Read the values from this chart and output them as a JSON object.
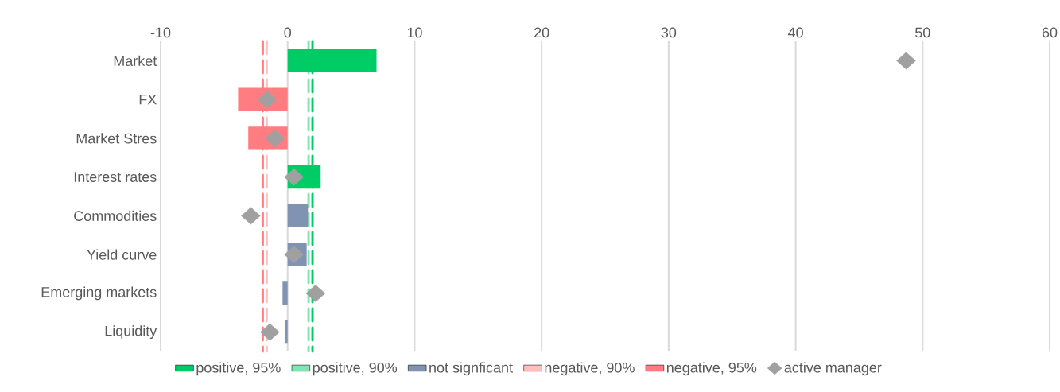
{
  "chart_data": {
    "type": "bar",
    "orientation": "horizontal",
    "stacked": true,
    "categories": [
      "Market",
      "FX",
      "Market Stres",
      "Interest rates",
      "Commodities",
      "Yield curve",
      "Emerging markets",
      "Liquidity"
    ],
    "series": [
      {
        "name": "positive, 95%",
        "color": "#00cc66",
        "values": [
          7.0,
          null,
          null,
          2.6,
          null,
          null,
          null,
          null
        ]
      },
      {
        "name": "positive, 90%",
        "color": "#84e3b3",
        "values": [
          null,
          null,
          null,
          null,
          null,
          null,
          null,
          null
        ]
      },
      {
        "name": "not signficant",
        "color": "#8093b3",
        "values": [
          null,
          null,
          null,
          null,
          1.6,
          1.5,
          -0.4,
          -0.2
        ]
      },
      {
        "name": "negative, 90%",
        "color": "#ffbfbf",
        "values": [
          null,
          null,
          null,
          null,
          null,
          null,
          null,
          null
        ]
      },
      {
        "name": "negative, 95%",
        "color": "#ff7c80",
        "values": [
          null,
          -3.9,
          -3.1,
          null,
          null,
          null,
          null,
          null
        ]
      },
      {
        "name": "active manager",
        "type": "scatter",
        "marker": "diamond",
        "color": "#a0a0a0",
        "x": [
          "Market",
          "FX",
          "Market Stres",
          "Interest rates",
          "Commodities",
          "Yield curve",
          "Emerging markets",
          "Liquidity"
        ],
        "values": [
          48.7,
          -1.6,
          -1.0,
          0.5,
          -2.9,
          0.5,
          2.2,
          -1.4
        ]
      }
    ],
    "xlim": [
      -10,
      60
    ],
    "xticks": [
      -10,
      0,
      10,
      20,
      30,
      40,
      50,
      60
    ],
    "grid": "x",
    "legend": "bottom",
    "ref_lines": [
      {
        "axis": "x",
        "value": 1.96,
        "color": "#00cc66",
        "line_style": "dashed"
      },
      {
        "axis": "x",
        "value": 1.65,
        "color": "#84e3b3",
        "line_style": "dashed"
      },
      {
        "axis": "x",
        "value": -1.65,
        "color": "#ffbfbf",
        "line_style": "dashed"
      },
      {
        "axis": "x",
        "value": -1.96,
        "color": "#ff7c80",
        "line_style": "dashed"
      }
    ]
  }
}
